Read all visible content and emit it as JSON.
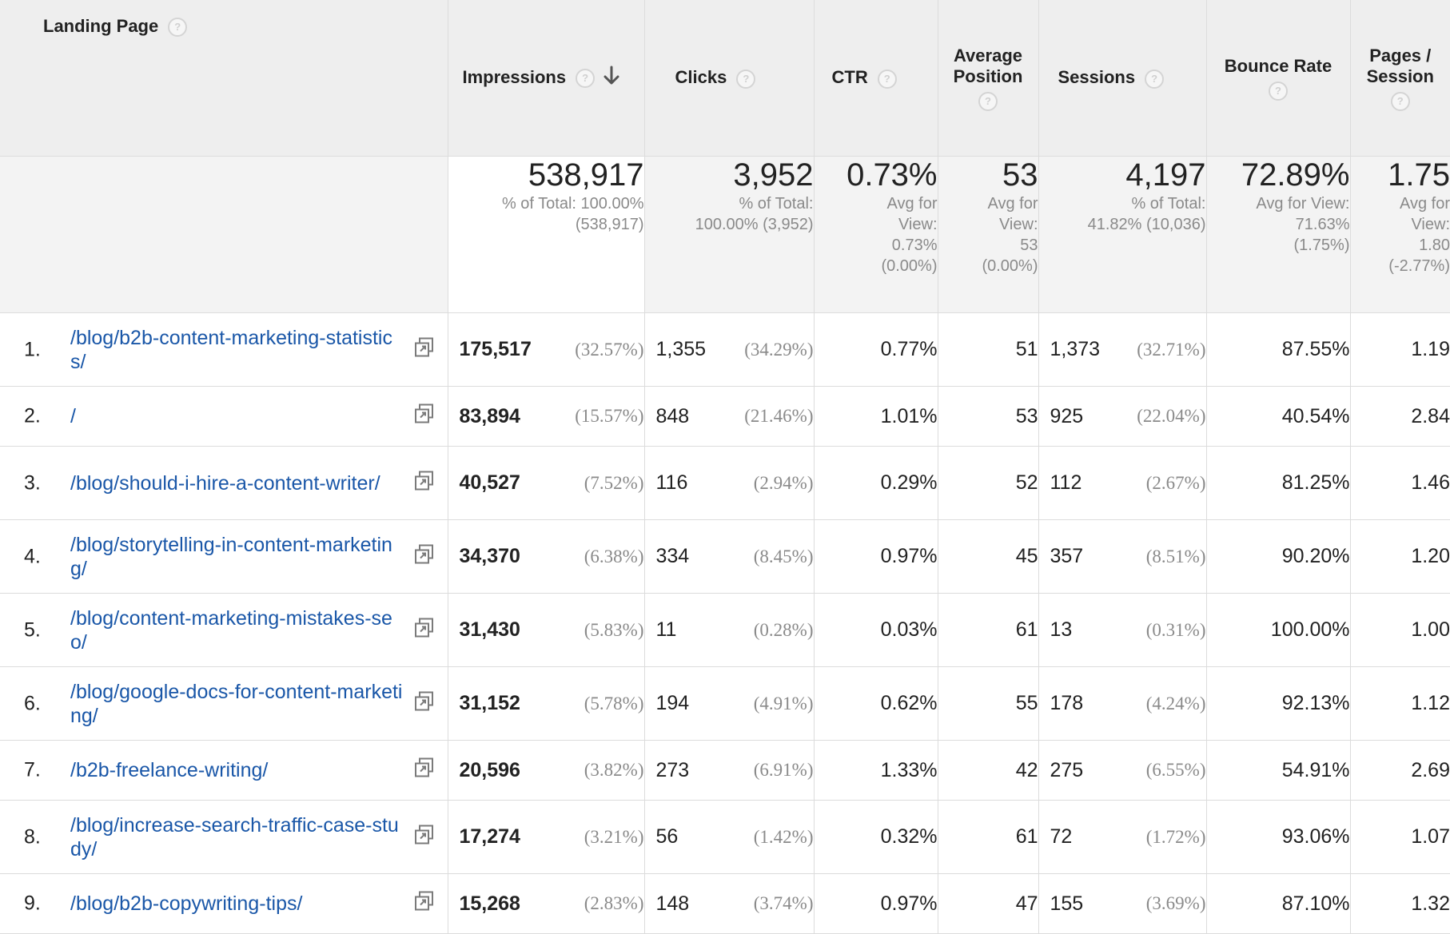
{
  "headers": {
    "landing_page": "Landing Page",
    "impressions": "Impressions",
    "clicks": "Clicks",
    "ctr": "CTR",
    "avg_position": "Average Position",
    "sessions": "Sessions",
    "bounce_rate": "Bounce Rate",
    "pages_session": "Pages / Session",
    "help_glyph": "?"
  },
  "summary": {
    "impressions": {
      "value": "538,917",
      "l1": "% of Total: 100.00%",
      "l2": "(538,917)"
    },
    "clicks": {
      "value": "3,952",
      "l1": "% of Total:",
      "l2": "100.00% (3,952)"
    },
    "ctr": {
      "value": "0.73%",
      "l1": "Avg for",
      "l2": "View:",
      "l3": "0.73%",
      "l4": "(0.00%)"
    },
    "avg_position": {
      "value": "53",
      "l1": "Avg for",
      "l2": "View:",
      "l3": "53",
      "l4": "(0.00%)"
    },
    "sessions": {
      "value": "4,197",
      "l1": "% of Total:",
      "l2": "41.82% (10,036)"
    },
    "bounce_rate": {
      "value": "72.89%",
      "l1": "Avg for View:",
      "l2": "71.63%",
      "l3": "(1.75%)"
    },
    "pages_session": {
      "value": "1.75",
      "l1": "Avg for",
      "l2": "View:",
      "l3": "1.80",
      "l4": "(-2.77%)"
    }
  },
  "rows": [
    {
      "index": "1.",
      "page": "/blog/b2b-content-marketing-statistics/",
      "impressions": "175,517",
      "imp_pct": "(32.57%)",
      "clicks": "1,355",
      "clk_pct": "(34.29%)",
      "ctr": "0.77%",
      "position": "51",
      "sessions": "1,373",
      "ses_pct": "(32.71%)",
      "bounce": "87.55%",
      "pps": "1.19"
    },
    {
      "index": "2.",
      "page": "/",
      "impressions": "83,894",
      "imp_pct": "(15.57%)",
      "clicks": "848",
      "clk_pct": "(21.46%)",
      "ctr": "1.01%",
      "position": "53",
      "sessions": "925",
      "ses_pct": "(22.04%)",
      "bounce": "40.54%",
      "pps": "2.84"
    },
    {
      "index": "3.",
      "page": "/blog/should-i-hire-a-content-writer/",
      "impressions": "40,527",
      "imp_pct": "(7.52%)",
      "clicks": "116",
      "clk_pct": "(2.94%)",
      "ctr": "0.29%",
      "position": "52",
      "sessions": "112",
      "ses_pct": "(2.67%)",
      "bounce": "81.25%",
      "pps": "1.46"
    },
    {
      "index": "4.",
      "page": "/blog/storytelling-in-content-marketing/",
      "impressions": "34,370",
      "imp_pct": "(6.38%)",
      "clicks": "334",
      "clk_pct": "(8.45%)",
      "ctr": "0.97%",
      "position": "45",
      "sessions": "357",
      "ses_pct": "(8.51%)",
      "bounce": "90.20%",
      "pps": "1.20"
    },
    {
      "index": "5.",
      "page": "/blog/content-marketing-mistakes-seo/",
      "impressions": "31,430",
      "imp_pct": "(5.83%)",
      "clicks": "11",
      "clk_pct": "(0.28%)",
      "ctr": "0.03%",
      "position": "61",
      "sessions": "13",
      "ses_pct": "(0.31%)",
      "bounce": "100.00%",
      "pps": "1.00"
    },
    {
      "index": "6.",
      "page": "/blog/google-docs-for-content-marketing/",
      "impressions": "31,152",
      "imp_pct": "(5.78%)",
      "clicks": "194",
      "clk_pct": "(4.91%)",
      "ctr": "0.62%",
      "position": "55",
      "sessions": "178",
      "ses_pct": "(4.24%)",
      "bounce": "92.13%",
      "pps": "1.12"
    },
    {
      "index": "7.",
      "page": "/b2b-freelance-writing/",
      "impressions": "20,596",
      "imp_pct": "(3.82%)",
      "clicks": "273",
      "clk_pct": "(6.91%)",
      "ctr": "1.33%",
      "position": "42",
      "sessions": "275",
      "ses_pct": "(6.55%)",
      "bounce": "54.91%",
      "pps": "2.69"
    },
    {
      "index": "8.",
      "page": "/blog/increase-search-traffic-case-study/",
      "impressions": "17,274",
      "imp_pct": "(3.21%)",
      "clicks": "56",
      "clk_pct": "(1.42%)",
      "ctr": "0.32%",
      "position": "61",
      "sessions": "72",
      "ses_pct": "(1.72%)",
      "bounce": "93.06%",
      "pps": "1.07"
    },
    {
      "index": "9.",
      "page": "/blog/b2b-copywriting-tips/",
      "impressions": "15,268",
      "imp_pct": "(2.83%)",
      "clicks": "148",
      "clk_pct": "(3.74%)",
      "ctr": "0.97%",
      "position": "47",
      "sessions": "155",
      "ses_pct": "(3.69%)",
      "bounce": "87.10%",
      "pps": "1.32"
    }
  ],
  "colors": {
    "link": "#1a57a8",
    "header_bg": "#eeeeee",
    "muted": "#8a8a8a"
  },
  "icons": {
    "help": "help-circle-icon",
    "sort": "arrow-down-icon",
    "open": "open-in-new-window-icon"
  }
}
